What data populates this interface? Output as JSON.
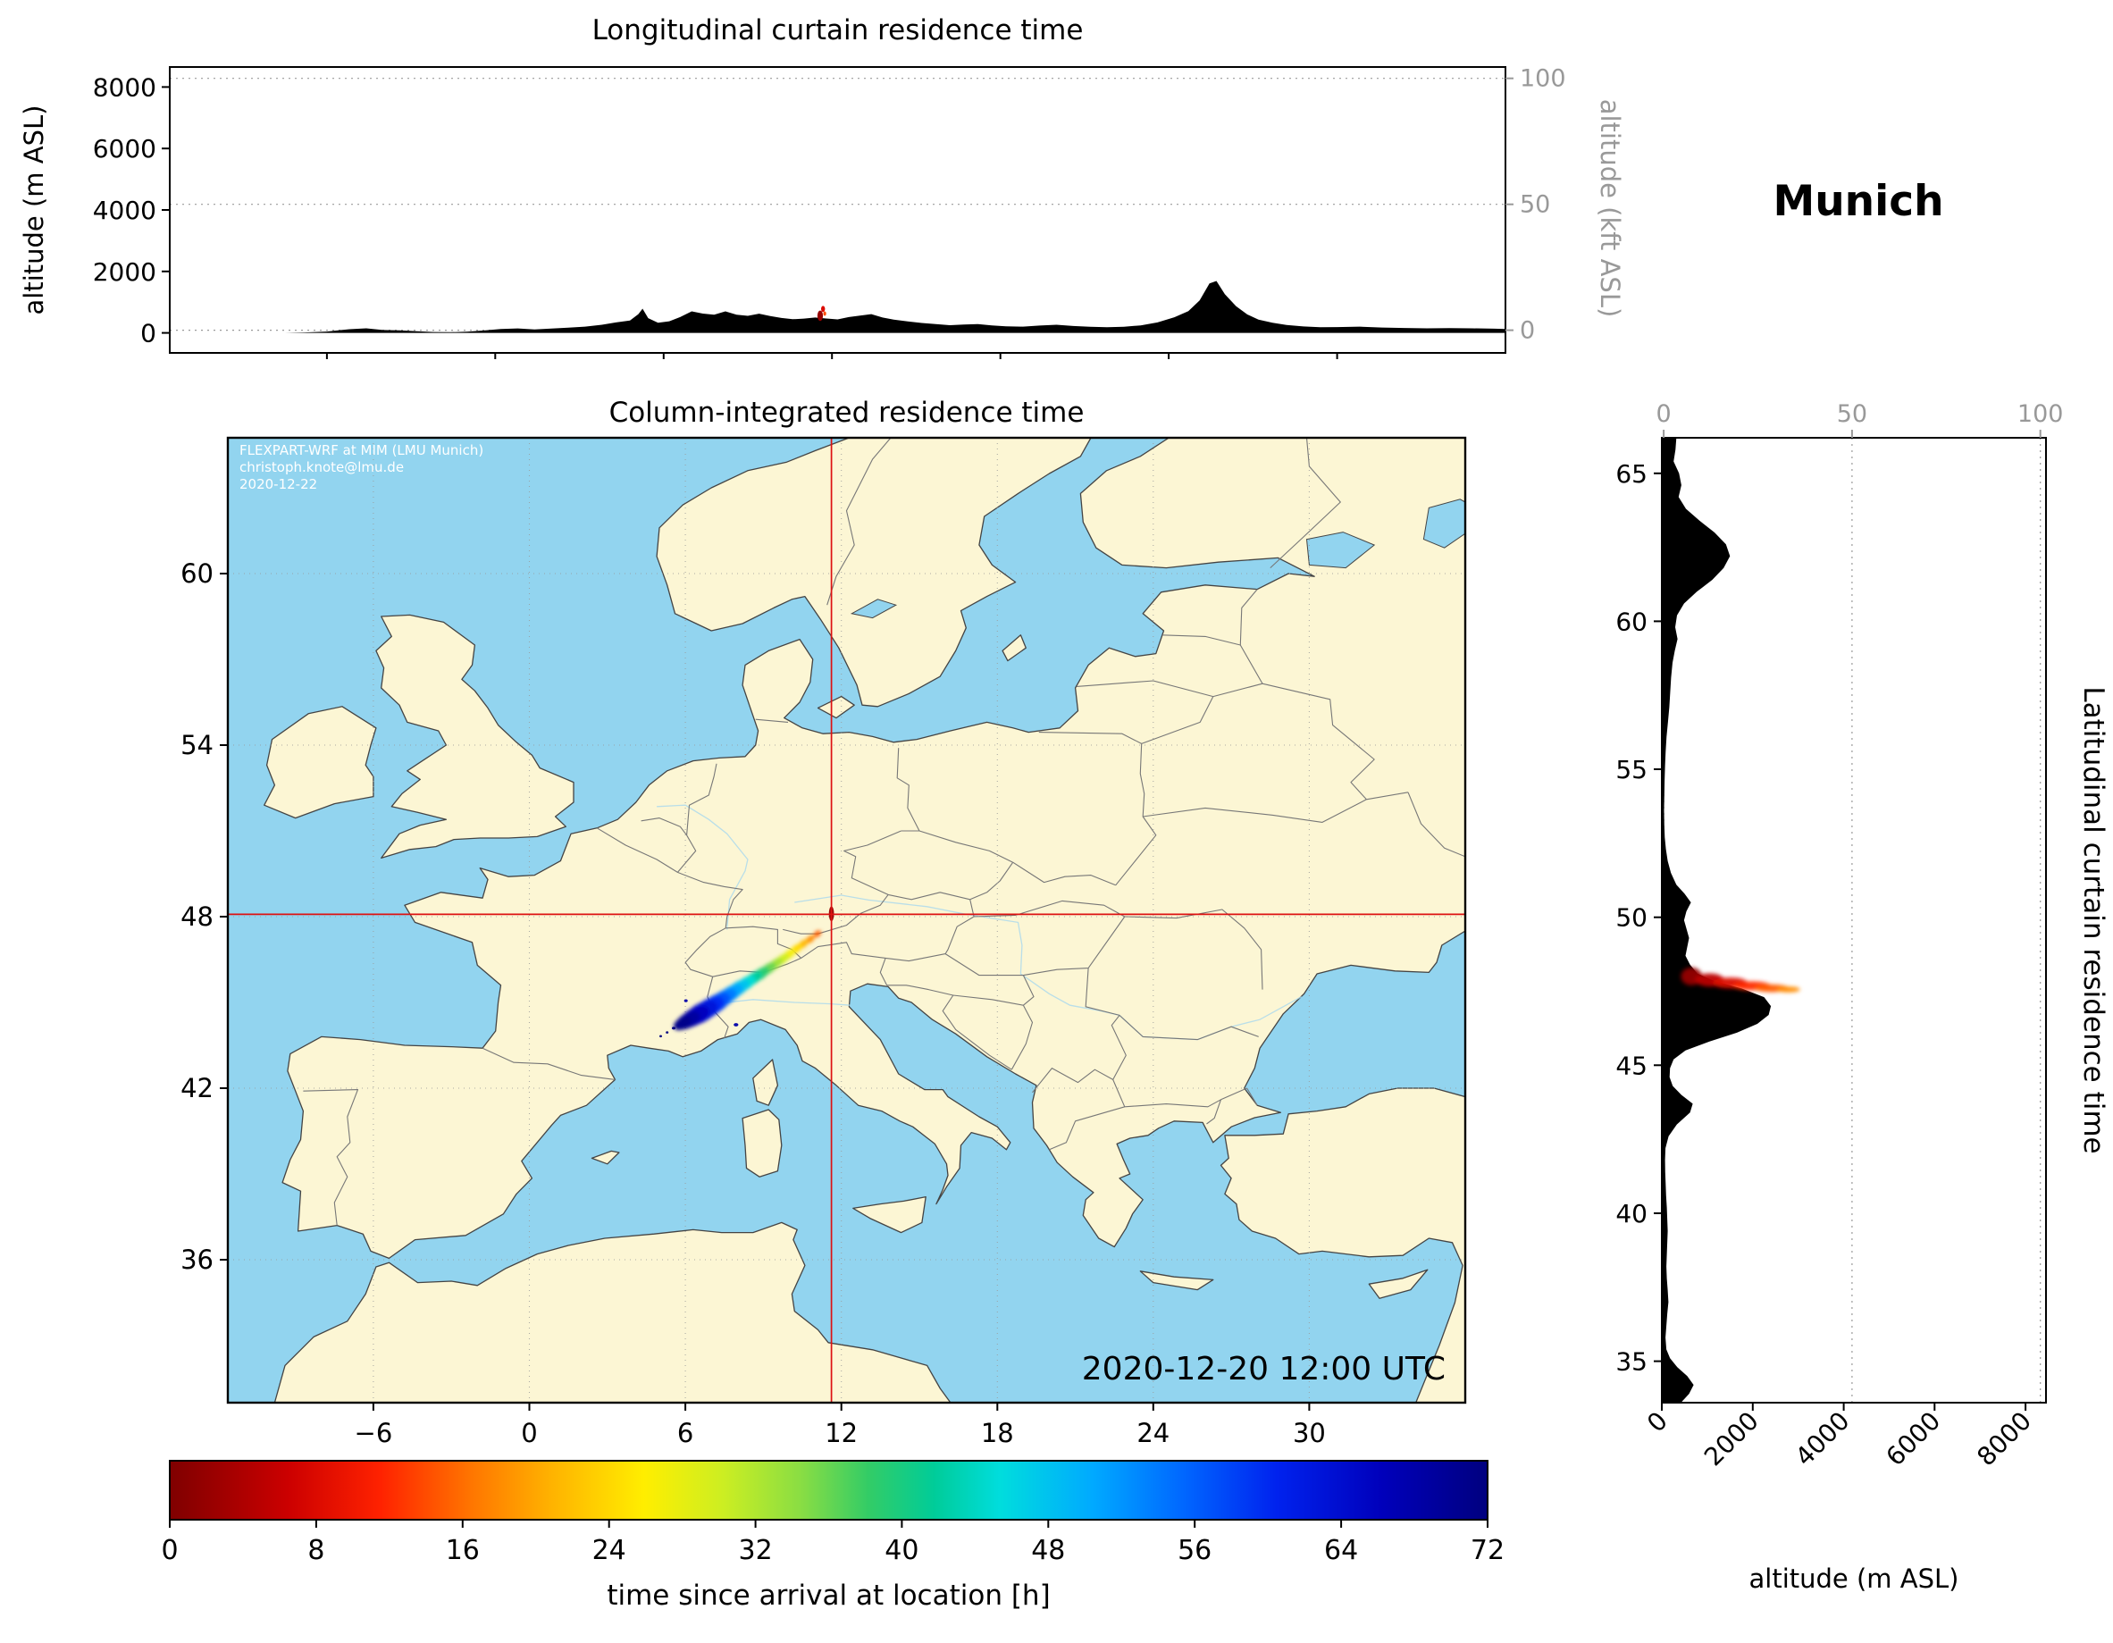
{
  "station": {
    "title": "Munich"
  },
  "top_panel": {
    "title": "Longitudinal curtain residence time",
    "ylabel_left": "altitude (m ASL)",
    "ylabel_right": "altitude (kft ASL)"
  },
  "map_panel": {
    "title": "Column-integrated residence time",
    "watermark": {
      "line1": "FLEXPART-WRF at MIM (LMU Munich)",
      "line2": "christoph.knote@lmu.de",
      "line3": "2020-12-22"
    },
    "timestamp": "2020-12-20 12:00 UTC"
  },
  "right_panel": {
    "title": "Latitudinal curtain residence time",
    "xlabel": "altitude (m ASL)"
  },
  "colorbar": {
    "label": "time since arrival at location [h]",
    "ticks": [
      0,
      8,
      16,
      24,
      32,
      40,
      48,
      56,
      64,
      72
    ],
    "vmin": 0,
    "vmax": 72,
    "stops": [
      [
        "#7f0000",
        0
      ],
      [
        "#a00000",
        0.04
      ],
      [
        "#cc0000",
        0.09
      ],
      [
        "#ff2200",
        0.16
      ],
      [
        "#ff7700",
        0.23
      ],
      [
        "#ffb300",
        0.29
      ],
      [
        "#ffee00",
        0.36
      ],
      [
        "#ccee22",
        0.42
      ],
      [
        "#88dd44",
        0.48
      ],
      [
        "#33cc66",
        0.53
      ],
      [
        "#00cc99",
        0.58
      ],
      [
        "#00dddd",
        0.63
      ],
      [
        "#00aaff",
        0.7
      ],
      [
        "#0066ff",
        0.77
      ],
      [
        "#0022ee",
        0.84
      ],
      [
        "#0000bb",
        0.92
      ],
      [
        "#00007f",
        1
      ]
    ]
  },
  "colors": {
    "land": "#fcf6d4",
    "water": "#92d4ef",
    "coast": "#444444",
    "border": "#777777",
    "river": "#a8d8ee",
    "grid": "#999999",
    "crosshair": "#dd1111",
    "terrain": "#000000",
    "axis_secondary": "#999999",
    "watermark": "#ffffff"
  },
  "chart_data": [
    {
      "id": "longitudinal_curtain",
      "type": "area",
      "title": "Longitudinal curtain residence time",
      "xlim": [
        -11.6,
        36.0
      ],
      "ylim_m": [
        -650,
        8650
      ],
      "ylim_kft": [
        -9.0,
        104.5
      ],
      "yticks_m": [
        0,
        2000,
        4000,
        6000,
        8000
      ],
      "yticks_kft": [
        0,
        50,
        100
      ],
      "xticks": [
        -6,
        0,
        6,
        12,
        18,
        24,
        30
      ],
      "terrain_m": [
        [
          -11.6,
          0
        ],
        [
          -7.5,
          0
        ],
        [
          -6.8,
          15
        ],
        [
          -6,
          45
        ],
        [
          -5.2,
          120
        ],
        [
          -4.6,
          150
        ],
        [
          -4,
          95
        ],
        [
          -3.4,
          85
        ],
        [
          -2.8,
          55
        ],
        [
          -2.2,
          30
        ],
        [
          -1.6,
          25
        ],
        [
          -1,
          40
        ],
        [
          -0.4,
          80
        ],
        [
          0.2,
          130
        ],
        [
          0.8,
          145
        ],
        [
          1.4,
          115
        ],
        [
          2,
          140
        ],
        [
          2.6,
          170
        ],
        [
          3.2,
          205
        ],
        [
          3.8,
          265
        ],
        [
          4.3,
          340
        ],
        [
          4.8,
          405
        ],
        [
          5.1,
          610
        ],
        [
          5.25,
          790
        ],
        [
          5.45,
          480
        ],
        [
          5.8,
          330
        ],
        [
          6.2,
          380
        ],
        [
          6.6,
          520
        ],
        [
          7,
          700
        ],
        [
          7.4,
          630
        ],
        [
          7.8,
          590
        ],
        [
          8.2,
          700
        ],
        [
          8.6,
          590
        ],
        [
          9,
          555
        ],
        [
          9.4,
          625
        ],
        [
          9.8,
          550
        ],
        [
          10.2,
          485
        ],
        [
          10.6,
          445
        ],
        [
          11,
          465
        ],
        [
          11.4,
          500
        ],
        [
          11.8,
          470
        ],
        [
          12.2,
          440
        ],
        [
          12.6,
          515
        ],
        [
          13,
          565
        ],
        [
          13.4,
          610
        ],
        [
          13.8,
          500
        ],
        [
          14.2,
          430
        ],
        [
          14.7,
          375
        ],
        [
          15.2,
          325
        ],
        [
          15.7,
          285
        ],
        [
          16.2,
          250
        ],
        [
          16.7,
          270
        ],
        [
          17.2,
          290
        ],
        [
          17.7,
          245
        ],
        [
          18.2,
          215
        ],
        [
          18.8,
          205
        ],
        [
          19.4,
          240
        ],
        [
          20,
          265
        ],
        [
          20.6,
          225
        ],
        [
          21.2,
          200
        ],
        [
          21.8,
          185
        ],
        [
          22.4,
          200
        ],
        [
          23,
          245
        ],
        [
          23.6,
          340
        ],
        [
          24.2,
          510
        ],
        [
          24.7,
          710
        ],
        [
          25.1,
          1060
        ],
        [
          25.45,
          1610
        ],
        [
          25.7,
          1690
        ],
        [
          26,
          1260
        ],
        [
          26.4,
          870
        ],
        [
          26.8,
          600
        ],
        [
          27.2,
          430
        ],
        [
          27.7,
          330
        ],
        [
          28.2,
          260
        ],
        [
          28.8,
          210
        ],
        [
          29.4,
          185
        ],
        [
          30,
          190
        ],
        [
          30.8,
          205
        ],
        [
          31.6,
          175
        ],
        [
          32.4,
          160
        ],
        [
          33.2,
          150
        ],
        [
          34,
          158
        ],
        [
          34.8,
          150
        ],
        [
          35.6,
          138
        ],
        [
          36,
          130
        ]
      ],
      "plume": [
        [
          11.58,
          560,
          2,
          0.1,
          170
        ],
        [
          11.68,
          780,
          8,
          0.07,
          100
        ],
        [
          11.74,
          630,
          14,
          0.05,
          70
        ]
      ]
    },
    {
      "id": "column_integrated_map",
      "type": "scatter",
      "title": "Column-integrated residence time",
      "xlim": [
        -11.6,
        36.0
      ],
      "ylim": [
        31.0,
        64.75
      ],
      "xticks": [
        -6,
        0,
        6,
        12,
        18,
        24,
        30
      ],
      "yticks": [
        36,
        42,
        48,
        54,
        60
      ],
      "receptor": {
        "lon": 11.62,
        "lat": 48.08
      },
      "plume": [
        [
          11.62,
          48.1,
          2,
          0.1,
          0.26,
          0,
          1
        ],
        [
          11.08,
          47.4,
          15,
          0.16,
          0.1,
          -40,
          0
        ],
        [
          10.8,
          47.21,
          18,
          0.2,
          0.11,
          -40,
          0
        ],
        [
          10.53,
          47.04,
          21,
          0.24,
          0.12,
          -39,
          0
        ],
        [
          10.26,
          46.87,
          24,
          0.27,
          0.13,
          -38,
          0
        ],
        [
          9.99,
          46.68,
          27,
          0.29,
          0.14,
          -38,
          0
        ],
        [
          9.72,
          46.5,
          30,
          0.31,
          0.15,
          -37,
          0
        ],
        [
          9.45,
          46.33,
          33,
          0.33,
          0.16,
          -37,
          0
        ],
        [
          9.18,
          46.17,
          36,
          0.34,
          0.17,
          -36,
          0
        ],
        [
          8.9,
          46.0,
          39,
          0.36,
          0.18,
          -36,
          0
        ],
        [
          8.62,
          45.84,
          42,
          0.38,
          0.19,
          -35,
          0
        ],
        [
          8.34,
          45.67,
          45,
          0.41,
          0.21,
          -34,
          0
        ],
        [
          8.05,
          45.5,
          48,
          0.45,
          0.23,
          -33,
          0
        ],
        [
          7.76,
          45.32,
          51,
          0.5,
          0.25,
          -32,
          0
        ],
        [
          7.47,
          45.14,
          54,
          0.55,
          0.27,
          -31,
          0
        ],
        [
          7.18,
          44.96,
          57,
          0.6,
          0.3,
          -31,
          0
        ],
        [
          6.9,
          44.8,
          60,
          0.65,
          0.32,
          -30,
          0
        ],
        [
          6.62,
          44.64,
          63,
          0.68,
          0.33,
          -30,
          0
        ],
        [
          6.35,
          44.5,
          66,
          0.62,
          0.3,
          -29,
          0
        ],
        [
          6.1,
          44.37,
          69,
          0.5,
          0.26,
          -29,
          0
        ],
        [
          5.88,
          44.26,
          71,
          0.36,
          0.2,
          -28,
          0
        ],
        [
          5.55,
          44.1,
          72,
          0.07,
          0.05,
          0,
          1
        ],
        [
          5.3,
          43.95,
          72,
          0.05,
          0.04,
          0,
          1
        ],
        [
          7.95,
          44.22,
          68,
          0.09,
          0.06,
          0,
          1
        ],
        [
          6.02,
          45.06,
          68,
          0.07,
          0.05,
          0,
          1
        ],
        [
          5.05,
          43.82,
          72,
          0.05,
          0.04,
          0,
          1
        ]
      ]
    },
    {
      "id": "latitudinal_curtain",
      "type": "area",
      "title": "Latitudinal curtain residence time",
      "xlabel": "altitude (m ASL)",
      "xlim_m": [
        0,
        8450
      ],
      "xlim_kft": [
        -0.5,
        101.5
      ],
      "xticks_m": [
        0,
        2000,
        4000,
        6000,
        8000
      ],
      "xticks_kft": [
        0,
        50,
        100
      ],
      "ylim": [
        33.6,
        66.2
      ],
      "yticks": [
        35,
        40,
        45,
        50,
        55,
        60,
        65
      ],
      "terrain_m": [
        [
          33.6,
          420
        ],
        [
          33.9,
          600
        ],
        [
          34.2,
          700
        ],
        [
          34.5,
          560
        ],
        [
          34.8,
          340
        ],
        [
          35.1,
          180
        ],
        [
          35.4,
          100
        ],
        [
          35.8,
          80
        ],
        [
          36.2,
          100
        ],
        [
          36.6,
          120
        ],
        [
          37,
          145
        ],
        [
          37.4,
          130
        ],
        [
          37.8,
          110
        ],
        [
          38.2,
          100
        ],
        [
          38.6,
          110
        ],
        [
          39,
          120
        ],
        [
          39.4,
          130
        ],
        [
          39.8,
          120
        ],
        [
          40.2,
          110
        ],
        [
          40.6,
          95
        ],
        [
          41,
          85
        ],
        [
          41.4,
          75
        ],
        [
          41.8,
          70
        ],
        [
          42.2,
          80
        ],
        [
          42.6,
          150
        ],
        [
          43,
          330
        ],
        [
          43.4,
          620
        ],
        [
          43.7,
          680
        ],
        [
          44,
          430
        ],
        [
          44.3,
          240
        ],
        [
          44.6,
          170
        ],
        [
          44.9,
          180
        ],
        [
          45.2,
          260
        ],
        [
          45.5,
          520
        ],
        [
          45.8,
          1050
        ],
        [
          46.1,
          1650
        ],
        [
          46.4,
          2100
        ],
        [
          46.7,
          2350
        ],
        [
          47,
          2400
        ],
        [
          47.3,
          2250
        ],
        [
          47.6,
          1750
        ],
        [
          47.85,
          1150
        ],
        [
          48.1,
          780
        ],
        [
          48.4,
          620
        ],
        [
          48.7,
          520
        ],
        [
          49,
          560
        ],
        [
          49.3,
          600
        ],
        [
          49.6,
          545
        ],
        [
          49.9,
          490
        ],
        [
          50.2,
          540
        ],
        [
          50.5,
          640
        ],
        [
          50.8,
          500
        ],
        [
          51.1,
          320
        ],
        [
          51.5,
          200
        ],
        [
          51.9,
          130
        ],
        [
          52.3,
          90
        ],
        [
          52.7,
          65
        ],
        [
          53.1,
          55
        ],
        [
          53.6,
          50
        ],
        [
          54.1,
          55
        ],
        [
          54.6,
          60
        ],
        [
          55.1,
          70
        ],
        [
          55.6,
          85
        ],
        [
          56.1,
          105
        ],
        [
          56.6,
          135
        ],
        [
          57.1,
          165
        ],
        [
          57.6,
          185
        ],
        [
          58.1,
          205
        ],
        [
          58.6,
          235
        ],
        [
          59,
          285
        ],
        [
          59.4,
          345
        ],
        [
          59.8,
          295
        ],
        [
          60.2,
          335
        ],
        [
          60.6,
          490
        ],
        [
          61,
          770
        ],
        [
          61.4,
          1110
        ],
        [
          61.8,
          1360
        ],
        [
          62.2,
          1500
        ],
        [
          62.6,
          1410
        ],
        [
          63,
          1160
        ],
        [
          63.4,
          830
        ],
        [
          63.8,
          530
        ],
        [
          64.2,
          370
        ],
        [
          64.6,
          430
        ],
        [
          65,
          380
        ],
        [
          65.4,
          260
        ],
        [
          65.8,
          300
        ],
        [
          66.2,
          320
        ]
      ],
      "plume": [
        [
          650,
          48.0,
          2,
          230,
          0.3
        ],
        [
          1050,
          47.88,
          5,
          320,
          0.22
        ],
        [
          1500,
          47.78,
          8,
          390,
          0.18
        ],
        [
          1980,
          47.68,
          12,
          420,
          0.15
        ],
        [
          2420,
          47.6,
          15,
          380,
          0.13
        ],
        [
          2780,
          47.56,
          18,
          260,
          0.1
        ]
      ]
    }
  ]
}
